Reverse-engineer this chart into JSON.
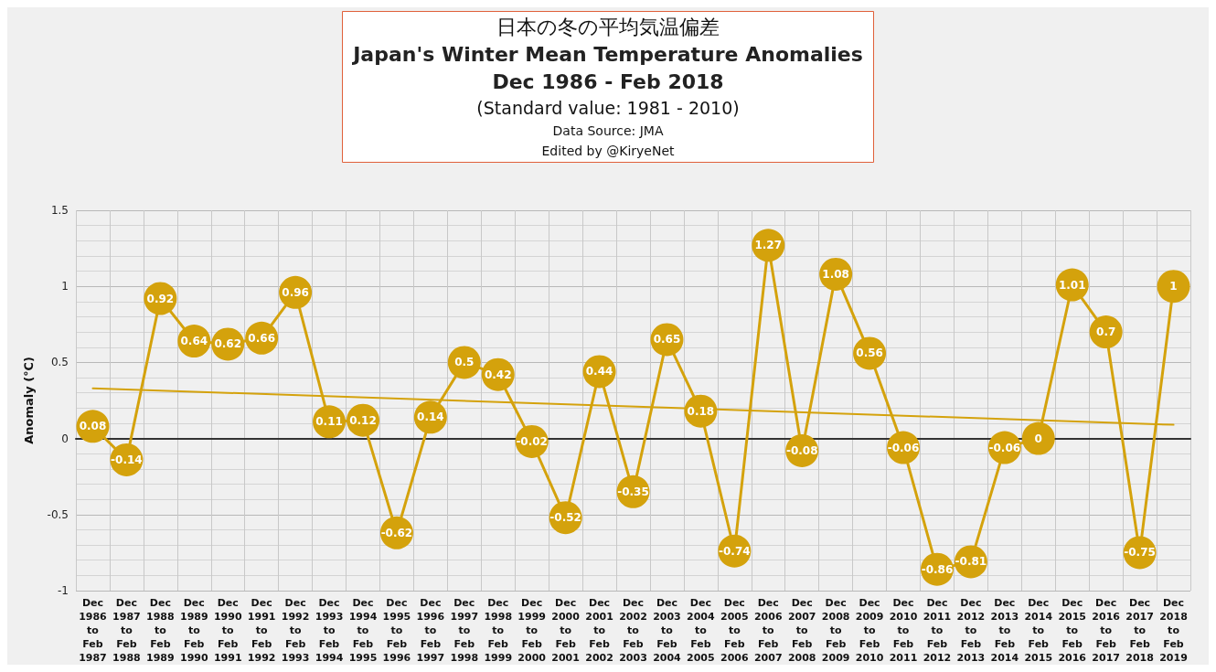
{
  "chart_data": {
    "type": "line",
    "title": "日本の冬の平均気温偏差",
    "subtitle": "Japan's Winter Mean Temperature Anomalies\nDec 1986 - Feb 2018",
    "annotations": [
      "(Standard value: 1981 - 2010)",
      "Data Source: JMA",
      "Edited by @KiryeNet"
    ],
    "ylabel": "Anomaly (℃)",
    "categories": [
      "Dec\n1986\nto\nFeb\n1987",
      "Dec\n1987\nto\nFeb\n1988",
      "Dec\n1988\nto\nFeb\n1989",
      "Dec\n1989\nto\nFeb\n1990",
      "Dec\n1990\nto\nFeb\n1991",
      "Dec\n1991\nto\nFeb\n1992",
      "Dec\n1992\nto\nFeb\n1993",
      "Dec\n1993\nto\nFeb\n1994",
      "Dec\n1994\nto\nFeb\n1995",
      "Dec\n1995\nto\nFeb\n1996",
      "Dec\n1996\nto\nFeb\n1997",
      "Dec\n1997\nto\nFeb\n1998",
      "Dec\n1998\nto\nFeb\n1999",
      "Dec\n1999\nto\nFeb\n2000",
      "Dec\n2000\nto\nFeb\n2001",
      "Dec\n2001\nto\nFeb\n2002",
      "Dec\n2002\nto\nFeb\n2003",
      "Dec\n2003\nto\nFeb\n2004",
      "Dec\n2004\nto\nFeb\n2005",
      "Dec\n2005\nto\nFeb\n2006",
      "Dec\n2006\nto\nFeb\n2007",
      "Dec\n2007\nto\nFeb\n2008",
      "Dec\n2008\nto\nFeb\n2009",
      "Dec\n2009\nto\nFeb\n2010",
      "Dec\n2010\nto\nFeb\n2011",
      "Dec\n2011\nto\nFeb\n2012",
      "Dec\n2012\nto\nFeb\n2013",
      "Dec\n2013\nto\nFeb\n2014",
      "Dec\n2014\nto\nFeb\n2015",
      "Dec\n2015\nto\nFeb\n2016",
      "Dec\n2016\nto\nFeb\n2017",
      "Dec\n2017\nto\nFeb\n2018",
      "Dec\n2018\nto\nFeb\n2019"
    ],
    "series": [
      {
        "color": "#d4a20c",
        "marker": "circle",
        "values": [
          0.08,
          -0.14,
          0.92,
          0.64,
          0.62,
          0.66,
          0.96,
          0.11,
          0.12,
          -0.62,
          0.14,
          0.5,
          0.42,
          -0.02,
          -0.52,
          0.44,
          -0.35,
          0.65,
          0.18,
          -0.74,
          1.27,
          -0.08,
          1.08,
          0.56,
          -0.06,
          -0.86,
          -0.81,
          -0.06,
          0,
          1.01,
          0.7,
          -0.75,
          1
        ],
        "value_labels": [
          "0.08",
          "-0.14",
          "0.92",
          "0.64",
          "0.62",
          "0.66",
          "0.96",
          "0.11",
          "0.12",
          "-0.62",
          "0.14",
          "0.5",
          "0.42",
          "-0.02",
          "-0.52",
          "0.44",
          "-0.35",
          "0.65",
          "0.18",
          "-0.74",
          "1.27",
          "-0.08",
          "1.08",
          "0.56",
          "-0.06",
          "-0.86",
          "-0.81",
          "-0.06",
          "0",
          "1.01",
          "0.7",
          "-0.75",
          "1"
        ]
      },
      {
        "color": "#d4a20c",
        "marker": "none",
        "x": [
          "Dec\n1986\nto\nFeb\n1987",
          "Dec\n2018\nto\nFeb\n2019"
        ],
        "values": [
          0.33,
          0.09
        ]
      }
    ],
    "ylim": [
      -1,
      1.5
    ],
    "yticks": [
      -1,
      -0.5,
      0,
      0.5,
      1,
      1.5
    ],
    "grid": true
  }
}
